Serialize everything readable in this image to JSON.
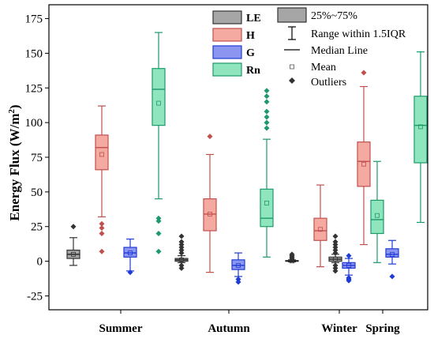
{
  "chart_data": {
    "type": "box",
    "ylabel": "Energy Flux (W/m²)",
    "ylim": [
      -35,
      185
    ],
    "yticks": [
      -25,
      0,
      25,
      50,
      75,
      100,
      125,
      150,
      175
    ],
    "categories": [
      "Summer",
      "Autumn",
      "Winter",
      "Spring"
    ],
    "series": [
      {
        "name": "LE",
        "fill": "#a6a6a6",
        "edge": "#333333",
        "median": "#222222",
        "outlier": "#333333",
        "boxes": [
          {
            "whisker_low": -3,
            "q1": 2,
            "median": 5,
            "q3": 8,
            "whisker_high": 17,
            "mean": 5,
            "outliers": [
              25
            ]
          },
          {
            "whisker_low": -1,
            "q1": 0,
            "median": 1,
            "q3": 2,
            "whisker_high": 4,
            "mean": 1,
            "outliers": [
              -5,
              -3,
              6,
              8,
              10,
              12,
              14,
              18
            ]
          },
          {
            "whisker_low": -0.5,
            "q1": 0,
            "median": 0.2,
            "q3": 0.5,
            "whisker_high": 1,
            "mean": 0.2,
            "outliers": [
              2,
              3,
              4,
              5
            ]
          },
          {
            "whisker_low": -1,
            "q1": 0,
            "median": 1.5,
            "q3": 3,
            "whisker_high": 5,
            "mean": 1.5,
            "outliers": [
              -7,
              -5,
              -3,
              6,
              8,
              10,
              12,
              14,
              18
            ]
          }
        ]
      },
      {
        "name": "H",
        "fill": "#f4a9a1",
        "edge": "#c0504d",
        "median": "#c0504d",
        "outlier": "#c0504d",
        "boxes": [
          {
            "whisker_low": 32,
            "q1": 66,
            "median": 82,
            "q3": 91,
            "whisker_high": 112,
            "mean": 77,
            "outliers": [
              7,
              20,
              24,
              27
            ]
          },
          {
            "whisker_low": -8,
            "q1": 22,
            "median": 34,
            "q3": 45,
            "whisker_high": 77,
            "mean": 34,
            "outliers": [
              90
            ]
          },
          {
            "whisker_low": -4,
            "q1": 15,
            "median": 22,
            "q3": 31,
            "whisker_high": 55,
            "mean": 23,
            "outliers": []
          },
          {
            "whisker_low": 12,
            "q1": 54,
            "median": 72,
            "q3": 86,
            "whisker_high": 126,
            "mean": 70,
            "outliers": [
              136
            ]
          }
        ]
      },
      {
        "name": "G",
        "fill": "#8c96f0",
        "edge": "#1f3bd6",
        "median": "#1f3bd6",
        "outlier": "#1f3bd6",
        "boxes": [
          {
            "whisker_low": -7,
            "q1": 3,
            "median": 6,
            "q3": 10,
            "whisker_high": 16,
            "mean": 6,
            "outliers": [
              -8
            ]
          },
          {
            "whisker_low": -11,
            "q1": -6,
            "median": -3,
            "q3": 1,
            "whisker_high": 6,
            "mean": -3,
            "outliers": [
              -15,
              -13
            ]
          },
          {
            "whisker_low": -10,
            "q1": -5,
            "median": -3,
            "q3": -1,
            "whisker_high": 2,
            "mean": -3,
            "outliers": [
              -14,
              -13,
              -12,
              4
            ]
          },
          {
            "whisker_low": -2,
            "q1": 3,
            "median": 5,
            "q3": 9,
            "whisker_high": 15,
            "mean": 5,
            "outliers": [
              -11
            ]
          }
        ]
      },
      {
        "name": "Rn",
        "fill": "#8fe5bd",
        "edge": "#1d9a6c",
        "median": "#1d9a6c",
        "outlier": "#1d9a6c",
        "boxes": [
          {
            "whisker_low": 45,
            "q1": 98,
            "median": 124,
            "q3": 139,
            "whisker_high": 165,
            "mean": 114,
            "outliers": [
              7,
              20,
              29,
              31
            ]
          },
          {
            "whisker_low": 3,
            "q1": 25,
            "median": 31,
            "q3": 52,
            "whisker_high": 88,
            "mean": 42,
            "outliers": [
              96,
              100,
              104,
              108,
              115,
              119,
              123
            ]
          },
          {
            "whisker_low": -1,
            "q1": 20,
            "median": 30,
            "q3": 44,
            "whisker_high": 72,
            "mean": 33,
            "outliers": []
          },
          {
            "whisker_low": 28,
            "q1": 71,
            "median": 98,
            "q3": 119,
            "whisker_high": 151,
            "mean": 97,
            "outliers": []
          }
        ]
      }
    ],
    "legend": {
      "series_labels": [
        "LE",
        "H",
        "G",
        "Rn"
      ],
      "box_label": "25%~75%",
      "range_label": "Range within 1.5IQR",
      "median_label": "Median Line",
      "mean_label": "Mean",
      "outlier_label": "Outliers"
    }
  }
}
